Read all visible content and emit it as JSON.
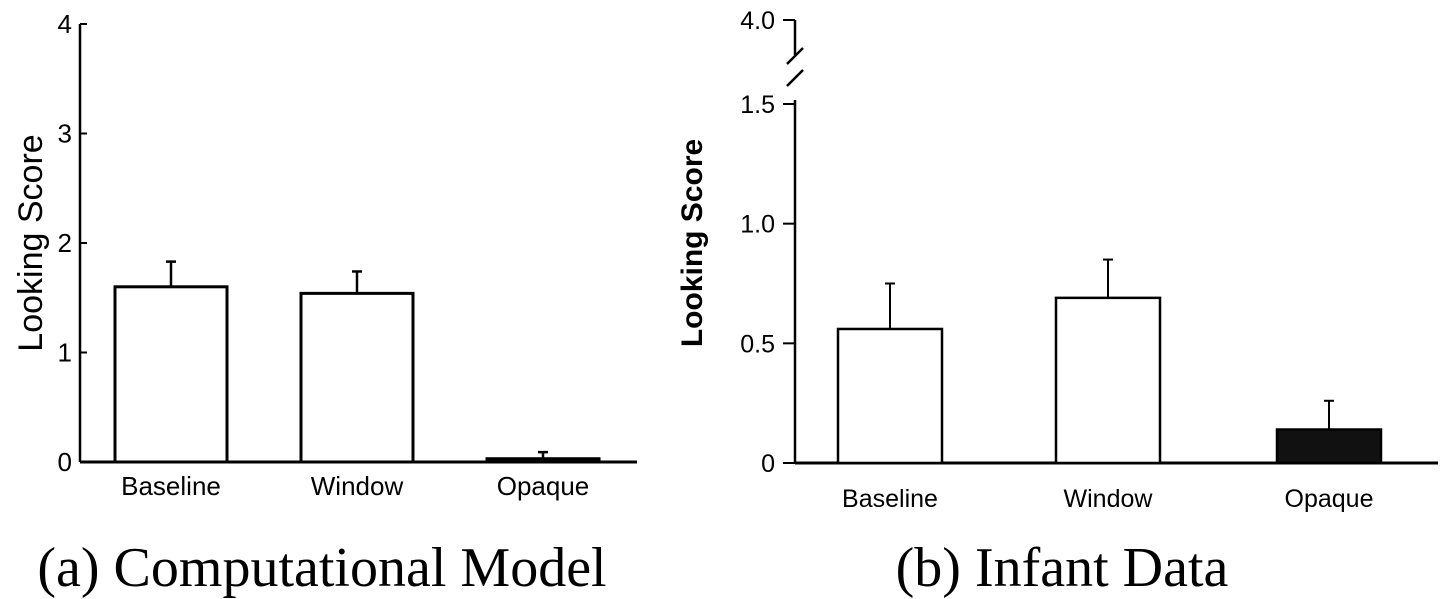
{
  "chart_data": [
    {
      "type": "bar",
      "caption": "(a) Computational Model",
      "ylabel": "Looking Score",
      "categories": [
        "Baseline",
        "Window",
        "Opaque"
      ],
      "values": [
        1.6,
        1.54,
        0.03
      ],
      "errors": [
        0.23,
        0.2,
        0.06
      ],
      "bar_colors": [
        "#ffffff",
        "#ffffff",
        "#111111"
      ],
      "ylim": [
        0,
        4
      ],
      "yticks": [
        "0",
        "1",
        "2",
        "3",
        "4"
      ]
    },
    {
      "type": "bar",
      "caption": "(b) Infant Data",
      "ylabel": "Looking Score",
      "categories": [
        "Baseline",
        "Window",
        "Opaque"
      ],
      "values": [
        0.56,
        0.69,
        0.14
      ],
      "errors": [
        0.19,
        0.16,
        0.12
      ],
      "bar_colors": [
        "#ffffff",
        "#ffffff",
        "#111111"
      ],
      "ylim": [
        0,
        1.5
      ],
      "yticks": [
        "0",
        "0.5",
        "1.0",
        "1.5",
        "4.0"
      ],
      "axis_break": true
    }
  ]
}
